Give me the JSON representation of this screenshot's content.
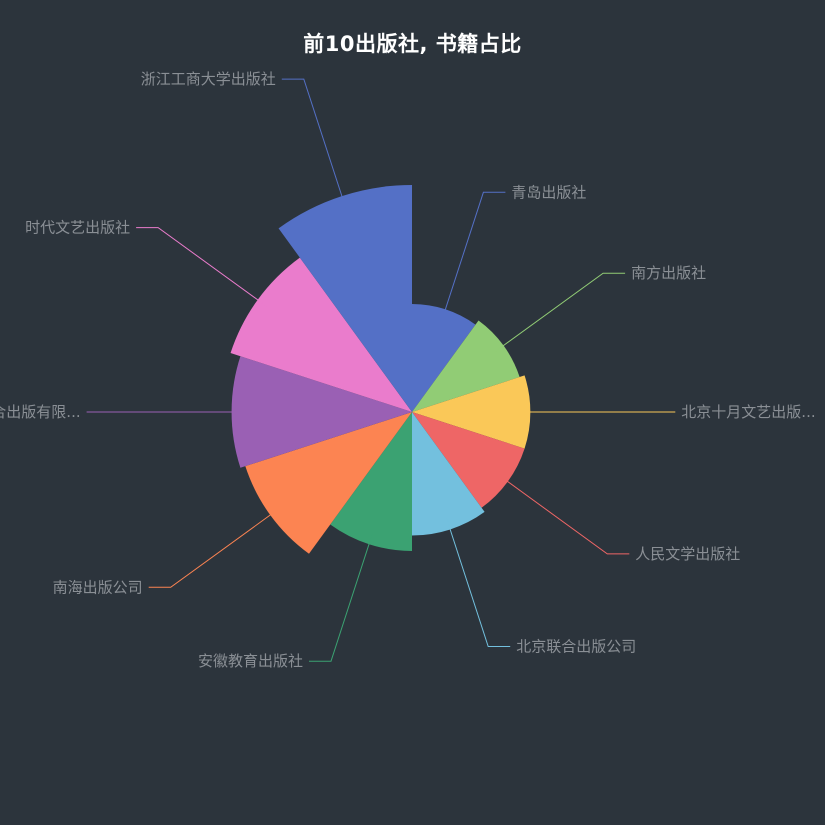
{
  "chart_data": {
    "type": "pie",
    "subtype": "rose",
    "title": "前10出版社, 书籍占比",
    "categories": [
      "青岛出版社",
      "南方出版社",
      "北京十月文艺出版...",
      "人民文学出版社",
      "北京联合出版公司",
      "安徽教育出版社",
      "南海出版公司",
      "北京联合出版有限...",
      "时代文艺出版社",
      "浙江工商大学出版社"
    ],
    "values": [
      11,
      12,
      13,
      13,
      14,
      17,
      24,
      25,
      27,
      34
    ],
    "colors": [
      "#5470c6",
      "#91cc75",
      "#fac858",
      "#ee6666",
      "#73c0de",
      "#3ba272",
      "#fc8452",
      "#9a60b4",
      "#ea7ccc",
      "#5470c6"
    ],
    "legend": "none"
  }
}
